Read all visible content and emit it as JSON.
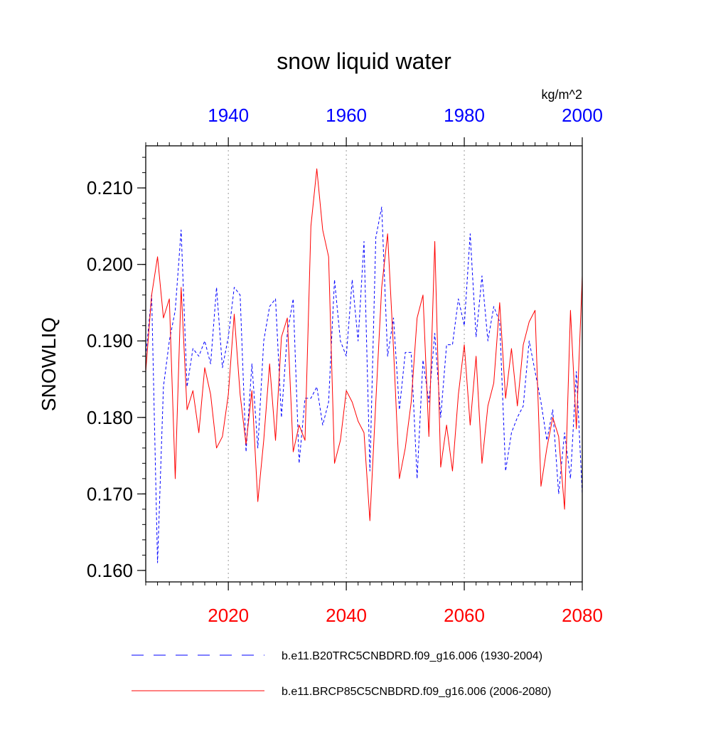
{
  "chart_data": {
    "type": "line",
    "title": "snow liquid water",
    "ylabel": "SNOWLIQ",
    "units": "kg/m^2",
    "ylim": [
      0.1585,
      0.2155
    ],
    "y_ticks": [
      0.16,
      0.17,
      0.18,
      0.19,
      0.2,
      0.21
    ],
    "y_tick_labels": [
      "0.160",
      "0.170",
      "0.180",
      "0.190",
      "0.200",
      "0.210"
    ],
    "grid": "vertical dotted at major x ticks",
    "top_axis": {
      "xlim": [
        1926,
        2000
      ],
      "ticks": [
        1940,
        1960,
        1980,
        2000
      ],
      "tick_labels": [
        "1940",
        "1960",
        "1980",
        "2000"
      ],
      "color": "#0000ff"
    },
    "bottom_axis": {
      "xlim": [
        2006,
        2080
      ],
      "ticks": [
        2020,
        2040,
        2060,
        2080
      ],
      "tick_labels": [
        "2020",
        "2040",
        "2060",
        "2080"
      ],
      "color": "#ff0000"
    },
    "legend_position": "bottom",
    "series": [
      {
        "name": "b.e11.B20TRC5CNBDRD.f09_g16.006 (1930-2004)",
        "axis": "top",
        "color": "#0000ff",
        "dash": "dashed",
        "x": [
          1926,
          1927,
          1928,
          1929,
          1930,
          1931,
          1932,
          1933,
          1934,
          1935,
          1936,
          1937,
          1938,
          1939,
          1940,
          1941,
          1942,
          1943,
          1944,
          1945,
          1946,
          1947,
          1948,
          1949,
          1950,
          1951,
          1952,
          1953,
          1954,
          1955,
          1956,
          1957,
          1958,
          1959,
          1960,
          1961,
          1962,
          1963,
          1964,
          1965,
          1966,
          1967,
          1968,
          1969,
          1970,
          1971,
          1972,
          1973,
          1974,
          1975,
          1976,
          1977,
          1978,
          1979,
          1980,
          1981,
          1982,
          1983,
          1984,
          1985,
          1986,
          1987,
          1988,
          1989,
          1990,
          1991,
          1992,
          1993,
          1994,
          1995,
          1996,
          1997,
          1998,
          1999,
          2000
        ],
        "values": [
          0.188,
          0.196,
          0.161,
          0.184,
          0.19,
          0.194,
          0.2045,
          0.184,
          0.189,
          0.188,
          0.19,
          0.187,
          0.197,
          0.1865,
          0.1905,
          0.197,
          0.196,
          0.1755,
          0.187,
          0.176,
          0.19,
          0.1945,
          0.1955,
          0.18,
          0.191,
          0.1955,
          0.174,
          0.1825,
          0.1825,
          0.184,
          0.179,
          0.182,
          0.198,
          0.19,
          0.188,
          0.198,
          0.19,
          0.203,
          0.173,
          0.2035,
          0.2075,
          0.188,
          0.193,
          0.181,
          0.1885,
          0.1885,
          0.172,
          0.1875,
          0.182,
          0.191,
          0.18,
          0.1895,
          0.1895,
          0.1955,
          0.192,
          0.204,
          0.1905,
          0.1985,
          0.19,
          0.1945,
          0.1925,
          0.173,
          0.178,
          0.18,
          0.1815,
          0.19,
          0.186,
          0.182,
          0.177,
          0.181,
          0.17,
          0.178,
          0.172,
          0.186,
          0.17
        ]
      },
      {
        "name": "b.e11.BRCP85C5CNBDRD.f09_g16.006 (2006-2080)",
        "axis": "bottom",
        "color": "#ff0000",
        "dash": "solid",
        "x": [
          2006,
          2007,
          2008,
          2009,
          2010,
          2011,
          2012,
          2013,
          2014,
          2015,
          2016,
          2017,
          2018,
          2019,
          2020,
          2021,
          2022,
          2023,
          2024,
          2025,
          2026,
          2027,
          2028,
          2029,
          2030,
          2031,
          2032,
          2033,
          2034,
          2035,
          2036,
          2037,
          2038,
          2039,
          2040,
          2041,
          2042,
          2043,
          2044,
          2045,
          2046,
          2047,
          2048,
          2049,
          2050,
          2051,
          2052,
          2053,
          2054,
          2055,
          2056,
          2057,
          2058,
          2059,
          2060,
          2061,
          2062,
          2063,
          2064,
          2065,
          2066,
          2067,
          2068,
          2069,
          2070,
          2071,
          2072,
          2073,
          2074,
          2075,
          2076,
          2077,
          2078,
          2079,
          2080
        ],
        "values": [
          0.186,
          0.196,
          0.201,
          0.193,
          0.1955,
          0.172,
          0.197,
          0.181,
          0.1835,
          0.178,
          0.1865,
          0.183,
          0.176,
          0.1775,
          0.183,
          0.1935,
          0.183,
          0.1765,
          0.1835,
          0.169,
          0.177,
          0.187,
          0.177,
          0.1905,
          0.193,
          0.1755,
          0.179,
          0.177,
          0.205,
          0.2125,
          0.2045,
          0.201,
          0.174,
          0.177,
          0.1835,
          0.182,
          0.1795,
          0.178,
          0.1665,
          0.182,
          0.197,
          0.204,
          0.189,
          0.172,
          0.176,
          0.182,
          0.193,
          0.196,
          0.1775,
          0.203,
          0.1735,
          0.179,
          0.173,
          0.183,
          0.1895,
          0.179,
          0.188,
          0.174,
          0.1815,
          0.1845,
          0.195,
          0.1825,
          0.189,
          0.1815,
          0.1895,
          0.1925,
          0.194,
          0.171,
          0.176,
          0.18,
          0.1775,
          0.168,
          0.194,
          0.1785,
          0.1985
        ]
      }
    ]
  }
}
